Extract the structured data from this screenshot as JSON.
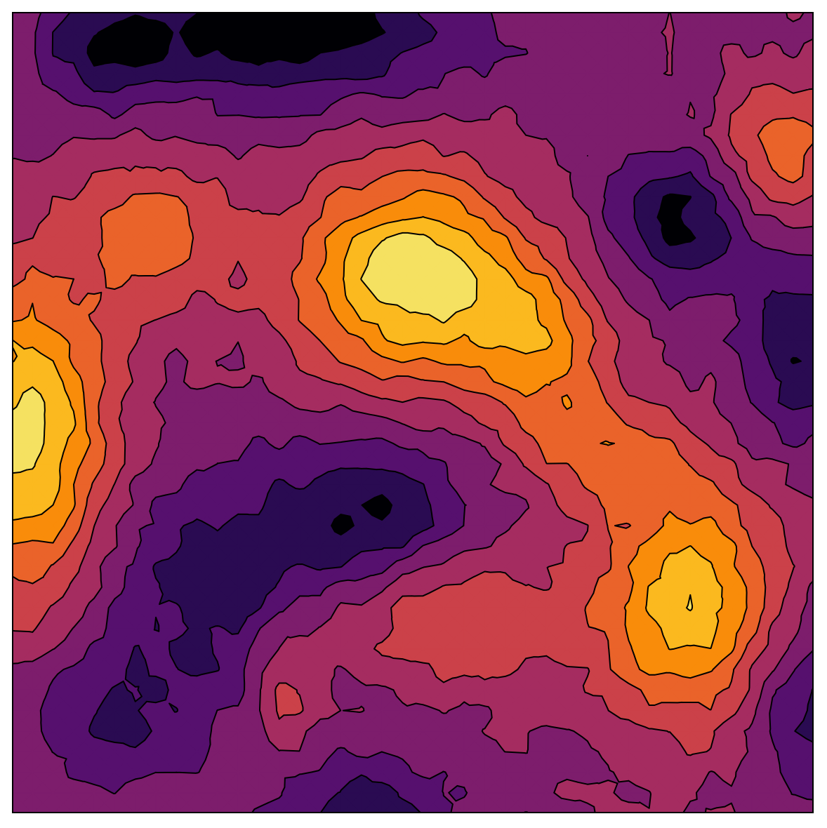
{
  "chart_data": {
    "type": "heatmap",
    "subtype": "filled-contour",
    "title": "",
    "xlabel": "",
    "ylabel": "",
    "grid": false,
    "colorbar": false,
    "axes_ticks": false,
    "colormap": "inferno",
    "color_stops": [
      "#000004",
      "#2a0b52",
      "#56106e",
      "#7d1d6c",
      "#a52c60",
      "#cb4149",
      "#ea632a",
      "#f98c0a",
      "#fbb91f",
      "#f5e161",
      "#fcffa4"
    ],
    "contour_line_color": "#000000",
    "levels": [
      0.0,
      0.1,
      0.2,
      0.3,
      0.4,
      0.5,
      0.6,
      0.7,
      0.8,
      0.9,
      1.0
    ],
    "grid_size": [
      40,
      40
    ],
    "xlim": [
      0,
      39
    ],
    "ylim": [
      0,
      39
    ],
    "field_components": [
      {
        "cx": 0.5,
        "cy": 0.33,
        "sx": 0.1,
        "sy": 0.09,
        "amp": 1.0
      },
      {
        "cx": 0.66,
        "cy": 0.42,
        "sx": 0.06,
        "sy": 0.07,
        "amp": 0.55
      },
      {
        "cx": 0.02,
        "cy": 0.53,
        "sx": 0.07,
        "sy": 0.14,
        "amp": 0.95
      },
      {
        "cx": 0.85,
        "cy": 0.74,
        "sx": 0.08,
        "sy": 0.11,
        "amp": 0.8
      },
      {
        "cx": 0.74,
        "cy": 0.55,
        "sx": 0.07,
        "sy": 0.05,
        "amp": 0.4
      },
      {
        "cx": 0.18,
        "cy": 0.28,
        "sx": 0.07,
        "sy": 0.07,
        "amp": 0.45
      },
      {
        "cx": 0.96,
        "cy": 0.17,
        "sx": 0.05,
        "sy": 0.06,
        "amp": 0.5
      },
      {
        "cx": 0.52,
        "cy": 0.76,
        "sx": 0.14,
        "sy": 0.06,
        "amp": 0.4
      },
      {
        "cx": 0.34,
        "cy": 0.84,
        "sx": 0.03,
        "sy": 0.06,
        "amp": 0.35
      },
      {
        "cx": 0.28,
        "cy": 0.72,
        "sx": 0.12,
        "sy": 0.1,
        "amp": -0.45
      },
      {
        "cx": 0.46,
        "cy": 0.62,
        "sx": 0.08,
        "sy": 0.06,
        "amp": -0.4
      },
      {
        "cx": 0.35,
        "cy": 0.02,
        "sx": 0.15,
        "sy": 0.06,
        "amp": -0.6
      },
      {
        "cx": 0.83,
        "cy": 0.26,
        "sx": 0.06,
        "sy": 0.06,
        "amp": -0.5
      },
      {
        "cx": 0.98,
        "cy": 0.42,
        "sx": 0.05,
        "sy": 0.08,
        "amp": -0.45
      },
      {
        "cx": 0.44,
        "cy": 0.99,
        "sx": 0.08,
        "sy": 0.04,
        "amp": -0.4
      },
      {
        "cx": 0.12,
        "cy": 0.05,
        "sx": 0.06,
        "sy": 0.05,
        "amp": -0.35
      },
      {
        "cx": 0.12,
        "cy": 0.88,
        "sx": 0.07,
        "sy": 0.06,
        "amp": -0.3
      },
      {
        "cx": 1.0,
        "cy": 0.86,
        "sx": 0.07,
        "sy": 0.08,
        "amp": -0.4
      }
    ],
    "noise_amplitude": 0.06,
    "noise_seed": 7
  }
}
